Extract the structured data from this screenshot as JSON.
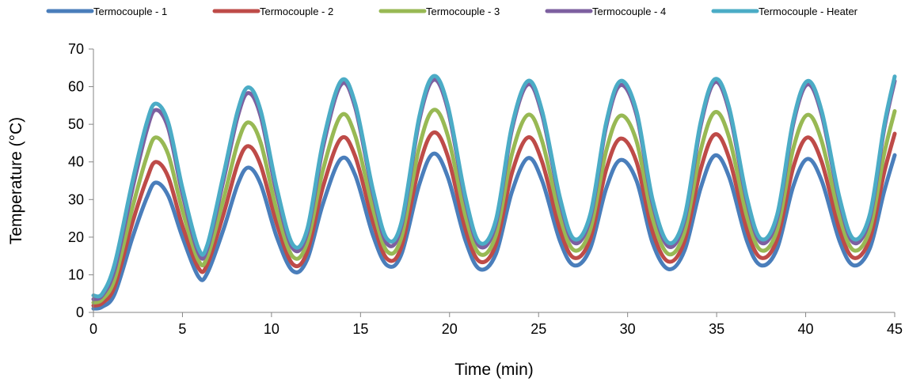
{
  "chart_data": {
    "type": "line",
    "title": "",
    "xlabel": "Time (min)",
    "ylabel": "Temperature (°C)",
    "xlim": [
      0,
      45
    ],
    "ylim": [
      0,
      70
    ],
    "x_ticks": [
      "0",
      "5",
      "10",
      "15",
      "20",
      "25",
      "30",
      "35",
      "40",
      "45"
    ],
    "y_ticks": [
      "0",
      "10",
      "20",
      "30",
      "40",
      "50",
      "60",
      "70"
    ],
    "grid": false,
    "legend_position": "top",
    "series": [
      {
        "name": "Termocouple - 1",
        "color": "#4A7EBB",
        "points": [
          [
            0,
            1
          ],
          [
            0.5,
            1.5
          ],
          [
            1.2,
            5
          ],
          [
            2.2,
            20
          ],
          [
            3,
            30.5
          ],
          [
            3.5,
            34.5
          ],
          [
            4.2,
            31
          ],
          [
            5,
            20
          ],
          [
            5.9,
            9.5
          ],
          [
            6.4,
            10.5
          ],
          [
            7.3,
            22
          ],
          [
            8.1,
            34
          ],
          [
            8.7,
            38.5
          ],
          [
            9.4,
            34
          ],
          [
            10.3,
            20
          ],
          [
            11.2,
            11
          ],
          [
            12,
            14
          ],
          [
            12.9,
            29
          ],
          [
            13.9,
            40.8
          ],
          [
            14.7,
            36.5
          ],
          [
            15.7,
            20.5
          ],
          [
            16.5,
            12.5
          ],
          [
            17.3,
            15.5
          ],
          [
            18.3,
            34
          ],
          [
            19.1,
            42.2
          ],
          [
            19.9,
            36
          ],
          [
            20.9,
            19
          ],
          [
            21.7,
            11.5
          ],
          [
            22.6,
            15.5
          ],
          [
            23.5,
            32
          ],
          [
            24.4,
            41
          ],
          [
            25.2,
            35
          ],
          [
            26.2,
            19
          ],
          [
            27,
            12.5
          ],
          [
            27.9,
            17
          ],
          [
            28.8,
            33
          ],
          [
            29.6,
            40.5
          ],
          [
            30.5,
            35
          ],
          [
            31.4,
            18.5
          ],
          [
            32.3,
            11.5
          ],
          [
            33.2,
            16.5
          ],
          [
            34.1,
            33
          ],
          [
            34.9,
            41.7
          ],
          [
            35.7,
            36
          ],
          [
            36.7,
            19
          ],
          [
            37.5,
            12.5
          ],
          [
            38.4,
            17
          ],
          [
            39.3,
            33.5
          ],
          [
            40.1,
            40.8
          ],
          [
            40.9,
            35
          ],
          [
            41.9,
            19
          ],
          [
            42.7,
            12.5
          ],
          [
            43.6,
            17
          ],
          [
            44.4,
            32
          ],
          [
            45,
            41.8
          ]
        ]
      },
      {
        "name": "Termocouple - 2",
        "color": "#BE4B48",
        "points": [
          [
            0,
            1.8
          ],
          [
            0.5,
            2.5
          ],
          [
            1.2,
            7
          ],
          [
            2.2,
            24
          ],
          [
            3,
            35.5
          ],
          [
            3.5,
            40
          ],
          [
            4.2,
            36
          ],
          [
            5,
            23
          ],
          [
            5.9,
            11.8
          ],
          [
            6.4,
            12.8
          ],
          [
            7.3,
            26
          ],
          [
            8.1,
            39.5
          ],
          [
            8.7,
            44.2
          ],
          [
            9.4,
            39
          ],
          [
            10.3,
            23.5
          ],
          [
            11.2,
            12.8
          ],
          [
            12,
            16
          ],
          [
            12.9,
            33.5
          ],
          [
            13.9,
            46.2
          ],
          [
            14.7,
            41.5
          ],
          [
            15.7,
            24
          ],
          [
            16.5,
            14.2
          ],
          [
            17.3,
            17.5
          ],
          [
            18.3,
            39
          ],
          [
            19.1,
            47.8
          ],
          [
            19.9,
            41.5
          ],
          [
            20.9,
            22
          ],
          [
            21.7,
            13.5
          ],
          [
            22.6,
            18
          ],
          [
            23.5,
            37
          ],
          [
            24.4,
            46.5
          ],
          [
            25.2,
            40
          ],
          [
            26.2,
            22
          ],
          [
            27,
            14.5
          ],
          [
            27.9,
            19.5
          ],
          [
            28.8,
            38
          ],
          [
            29.6,
            46.2
          ],
          [
            30.5,
            40
          ],
          [
            31.4,
            21.5
          ],
          [
            32.3,
            13.5
          ],
          [
            33.2,
            19
          ],
          [
            34.1,
            38
          ],
          [
            34.9,
            47.3
          ],
          [
            35.7,
            41
          ],
          [
            36.7,
            22
          ],
          [
            37.5,
            14.5
          ],
          [
            38.4,
            19.5
          ],
          [
            39.3,
            38.5
          ],
          [
            40.1,
            46.5
          ],
          [
            40.9,
            40
          ],
          [
            41.9,
            22
          ],
          [
            42.7,
            14.5
          ],
          [
            43.6,
            19.5
          ],
          [
            44.4,
            37
          ],
          [
            45,
            47.5
          ]
        ]
      },
      {
        "name": "Termocouple - 3",
        "color": "#98B954",
        "points": [
          [
            0,
            2.6
          ],
          [
            0.5,
            3.5
          ],
          [
            1.2,
            9
          ],
          [
            2.2,
            28
          ],
          [
            3,
            41.5
          ],
          [
            3.5,
            46.5
          ],
          [
            4.2,
            42
          ],
          [
            5,
            27
          ],
          [
            5.9,
            13.8
          ],
          [
            6.4,
            14.8
          ],
          [
            7.3,
            30
          ],
          [
            8.1,
            45
          ],
          [
            8.7,
            50.5
          ],
          [
            9.4,
            45
          ],
          [
            10.3,
            27
          ],
          [
            11.2,
            14.8
          ],
          [
            12,
            18.5
          ],
          [
            12.9,
            38
          ],
          [
            13.9,
            52.3
          ],
          [
            14.7,
            47
          ],
          [
            15.7,
            27.5
          ],
          [
            16.5,
            16.2
          ],
          [
            17.3,
            20
          ],
          [
            18.3,
            44
          ],
          [
            19.1,
            53.8
          ],
          [
            19.9,
            47
          ],
          [
            20.9,
            25.5
          ],
          [
            21.7,
            15.5
          ],
          [
            22.6,
            20.5
          ],
          [
            23.5,
            42
          ],
          [
            24.4,
            52.5
          ],
          [
            25.2,
            45.5
          ],
          [
            26.2,
            25.5
          ],
          [
            27,
            16.5
          ],
          [
            27.9,
            22
          ],
          [
            28.8,
            43
          ],
          [
            29.6,
            52.3
          ],
          [
            30.5,
            45.5
          ],
          [
            31.4,
            25
          ],
          [
            32.3,
            15.5
          ],
          [
            33.2,
            21.5
          ],
          [
            34.1,
            43
          ],
          [
            34.9,
            53.2
          ],
          [
            35.7,
            46.5
          ],
          [
            36.7,
            25.5
          ],
          [
            37.5,
            16.5
          ],
          [
            38.4,
            22
          ],
          [
            39.3,
            43.5
          ],
          [
            40.1,
            52.5
          ],
          [
            40.9,
            45.5
          ],
          [
            41.9,
            25.5
          ],
          [
            42.7,
            16.5
          ],
          [
            43.6,
            22
          ],
          [
            44.4,
            42
          ],
          [
            45,
            53.5
          ]
        ]
      },
      {
        "name": "Termocouple - 4",
        "color": "#7D60A0",
        "points": [
          [
            0,
            3.5
          ],
          [
            0.5,
            4.5
          ],
          [
            1.2,
            11.5
          ],
          [
            2.2,
            33
          ],
          [
            3,
            48.5
          ],
          [
            3.5,
            53.8
          ],
          [
            4.2,
            49
          ],
          [
            5,
            31.5
          ],
          [
            5.9,
            15.8
          ],
          [
            6.4,
            17
          ],
          [
            7.3,
            35
          ],
          [
            8.1,
            52
          ],
          [
            8.7,
            58.3
          ],
          [
            9.4,
            52
          ],
          [
            10.3,
            31.5
          ],
          [
            11.2,
            17
          ],
          [
            12,
            21
          ],
          [
            12.9,
            44
          ],
          [
            13.9,
            60.5
          ],
          [
            14.7,
            54.5
          ],
          [
            15.7,
            31.5
          ],
          [
            16.5,
            18.2
          ],
          [
            17.3,
            23
          ],
          [
            18.3,
            51
          ],
          [
            19.1,
            61.8
          ],
          [
            19.9,
            54
          ],
          [
            20.9,
            29.5
          ],
          [
            21.7,
            17.5
          ],
          [
            22.6,
            23.5
          ],
          [
            23.5,
            48.5
          ],
          [
            24.4,
            60.6
          ],
          [
            25.2,
            52.5
          ],
          [
            26.2,
            29.5
          ],
          [
            27,
            18.5
          ],
          [
            27.9,
            25
          ],
          [
            28.8,
            49.5
          ],
          [
            29.6,
            60.4
          ],
          [
            30.5,
            52.5
          ],
          [
            31.4,
            29
          ],
          [
            32.3,
            17.5
          ],
          [
            33.2,
            24.5
          ],
          [
            34.1,
            49.5
          ],
          [
            34.9,
            61.2
          ],
          [
            35.7,
            53.5
          ],
          [
            36.7,
            29.5
          ],
          [
            37.5,
            18.5
          ],
          [
            38.4,
            25
          ],
          [
            39.3,
            50
          ],
          [
            40.1,
            60.6
          ],
          [
            40.9,
            52.5
          ],
          [
            41.9,
            29.5
          ],
          [
            42.7,
            18.5
          ],
          [
            43.6,
            25
          ],
          [
            44.4,
            48.5
          ],
          [
            45,
            61.5
          ]
        ]
      },
      {
        "name": "Termocouple - Heater",
        "color": "#4BACC6",
        "points": [
          [
            0,
            4.5
          ],
          [
            0.5,
            5
          ],
          [
            1.2,
            13
          ],
          [
            2.2,
            35
          ],
          [
            3,
            50.5
          ],
          [
            3.5,
            55.5
          ],
          [
            4.2,
            50.5
          ],
          [
            5,
            33
          ],
          [
            5.9,
            17
          ],
          [
            6.4,
            18
          ],
          [
            7.3,
            36.5
          ],
          [
            8.1,
            53.5
          ],
          [
            8.7,
            59.8
          ],
          [
            9.4,
            53.5
          ],
          [
            10.3,
            33
          ],
          [
            11.2,
            18
          ],
          [
            12,
            22
          ],
          [
            12.9,
            45.5
          ],
          [
            13.9,
            61.5
          ],
          [
            14.7,
            55.5
          ],
          [
            15.7,
            32.5
          ],
          [
            16.5,
            19.5
          ],
          [
            17.3,
            24
          ],
          [
            18.3,
            52
          ],
          [
            19.1,
            62.8
          ],
          [
            19.9,
            55
          ],
          [
            20.9,
            30.5
          ],
          [
            21.7,
            18.5
          ],
          [
            22.6,
            24.5
          ],
          [
            23.5,
            49.5
          ],
          [
            24.4,
            61.5
          ],
          [
            25.2,
            53.5
          ],
          [
            26.2,
            30.5
          ],
          [
            27,
            19.5
          ],
          [
            27.9,
            26
          ],
          [
            28.8,
            50.5
          ],
          [
            29.6,
            61.5
          ],
          [
            30.5,
            53.5
          ],
          [
            31.4,
            30
          ],
          [
            32.3,
            18.5
          ],
          [
            33.2,
            25.5
          ],
          [
            34.1,
            50.5
          ],
          [
            34.9,
            62
          ],
          [
            35.7,
            54.5
          ],
          [
            36.7,
            30.5
          ],
          [
            37.5,
            19.5
          ],
          [
            38.4,
            26
          ],
          [
            39.3,
            51
          ],
          [
            40.1,
            61.5
          ],
          [
            40.9,
            53.5
          ],
          [
            41.9,
            30.5
          ],
          [
            42.7,
            19.5
          ],
          [
            43.6,
            26
          ],
          [
            44.4,
            49.5
          ],
          [
            45,
            62.7
          ]
        ]
      }
    ]
  }
}
